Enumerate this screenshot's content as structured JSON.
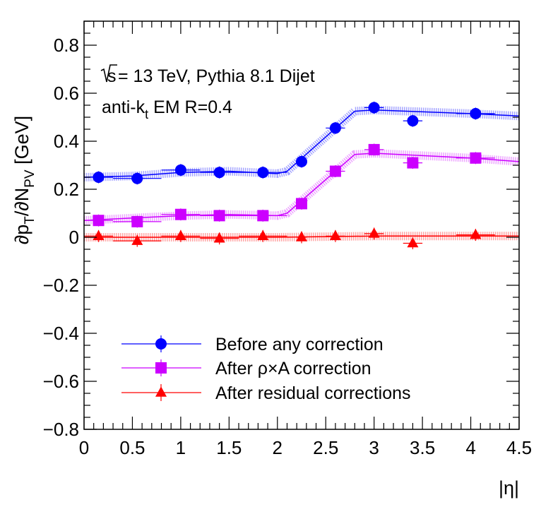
{
  "chart_data": {
    "type": "scatter",
    "xlabel": "|η|",
    "ylabel": "∂p_T/∂N_PV [GeV]",
    "xlim": [
      0,
      4.5
    ],
    "ylim": [
      -0.8,
      0.9
    ],
    "xticks": [
      "0",
      "0.5",
      "1",
      "1.5",
      "2",
      "2.5",
      "3",
      "3.5",
      "4",
      "4.5"
    ],
    "yticks": [
      "−0.8",
      "−0.6",
      "−0.4",
      "−0.2",
      "0",
      "0.2",
      "0.4",
      "0.6",
      "0.8"
    ],
    "annotations": {
      "energy_sqrt": "s",
      "energy_rest": " = 13 TeV, Pythia 8.1 Dijet",
      "algo_prefix": "anti-k",
      "algo_sub": "t",
      "algo_rest": " EM R=0.4"
    },
    "legend_position": "bottom-left",
    "grid": false,
    "series": [
      {
        "name": "Before any correction",
        "color": "#0000ff",
        "marker": "circle",
        "x": [
          0.15,
          0.55,
          1.0,
          1.4,
          1.85,
          2.25,
          2.6,
          3.0,
          3.4,
          4.05
        ],
        "y": [
          0.25,
          0.245,
          0.28,
          0.27,
          0.27,
          0.315,
          0.455,
          0.54,
          0.485,
          0.515
        ],
        "xerr": [
          0.15,
          0.25,
          0.2,
          0.2,
          0.25,
          0.05,
          0.1,
          0.1,
          0.1,
          0.2
        ],
        "band_x": [
          0.0,
          0.5,
          1.0,
          1.5,
          2.0,
          2.1,
          2.8,
          3.0,
          4.0,
          4.5
        ],
        "band_y": [
          0.25,
          0.255,
          0.27,
          0.275,
          0.265,
          0.275,
          0.525,
          0.53,
          0.515,
          0.505
        ]
      },
      {
        "name": "After ρ×A correction",
        "color": "#cc00ff",
        "marker": "square",
        "x": [
          0.15,
          0.55,
          1.0,
          1.4,
          1.85,
          2.25,
          2.6,
          3.0,
          3.4,
          4.05
        ],
        "y": [
          0.07,
          0.065,
          0.095,
          0.09,
          0.09,
          0.14,
          0.275,
          0.365,
          0.31,
          0.33
        ],
        "xerr": [
          0.15,
          0.25,
          0.2,
          0.2,
          0.25,
          0.05,
          0.1,
          0.1,
          0.1,
          0.2
        ],
        "band_x": [
          0.0,
          0.5,
          1.0,
          1.5,
          2.0,
          2.1,
          2.8,
          3.0,
          4.0,
          4.5
        ],
        "band_y": [
          0.07,
          0.08,
          0.09,
          0.095,
          0.09,
          0.1,
          0.345,
          0.35,
          0.33,
          0.315
        ]
      },
      {
        "name": "After residual corrections",
        "color": "#ff0000",
        "marker": "triangle",
        "x": [
          0.15,
          0.55,
          1.0,
          1.4,
          1.85,
          2.25,
          2.6,
          3.0,
          3.4,
          4.05
        ],
        "y": [
          0.005,
          -0.015,
          0.005,
          -0.005,
          0.005,
          0.0,
          0.005,
          0.015,
          -0.025,
          0.01
        ],
        "xerr": [
          0.15,
          0.25,
          0.2,
          0.2,
          0.25,
          0.05,
          0.1,
          0.1,
          0.1,
          0.2
        ],
        "band_x": [
          0.0,
          1.0,
          2.0,
          3.0,
          4.0,
          4.5
        ],
        "band_y": [
          0.0,
          0.0,
          0.0,
          0.005,
          0.005,
          0.005
        ]
      }
    ]
  }
}
